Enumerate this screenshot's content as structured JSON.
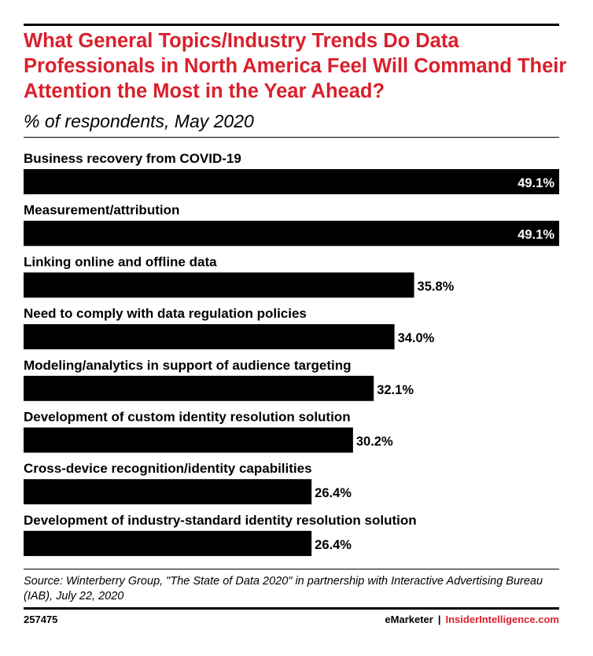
{
  "header": {
    "title": "What General Topics/Industry Trends Do Data Professionals in North America Feel Will Command Their Attention the Most in the Year Ahead?",
    "subtitle": "% of respondents, May 2020"
  },
  "chart_data": {
    "type": "bar",
    "orientation": "horizontal",
    "title": "What General Topics/Industry Trends Do Data Professionals in North America Feel Will Command Their Attention the Most in the Year Ahead?",
    "subtitle": "% of respondents, May 2020",
    "categories": [
      "Business recovery from COVID-19",
      "Measurement/attribution",
      "Linking online and offline data",
      "Need to comply with data regulation policies",
      "Modeling/analytics in support of audience targeting",
      "Development of custom identity resolution solution",
      "Cross-device recognition/identity capabilities",
      "Development of industry-standard identity resolution solution"
    ],
    "values": [
      49.1,
      49.1,
      35.8,
      34.0,
      32.1,
      30.2,
      26.4,
      26.4
    ],
    "value_labels": [
      "49.1%",
      "49.1%",
      "35.8%",
      "34.0%",
      "32.1%",
      "30.2%",
      "26.4%",
      "26.4%"
    ],
    "unit": "%",
    "xlim": [
      0,
      49.1
    ],
    "grid": false,
    "legend": "none",
    "bar_color": "#000000"
  },
  "footer": {
    "source": "Source: Winterberry Group, \"The State of Data 2020\" in partnership with Interactive Advertising Bureau (IAB), July 22, 2020",
    "chart_id": "257475",
    "brand_emarketer": "eMarketer",
    "brand_separator": "|",
    "brand_insider": "InsiderIntelligence.com"
  },
  "colors": {
    "title": "#d9202c",
    "bars": "#000000",
    "brand_accent": "#d9202c"
  }
}
